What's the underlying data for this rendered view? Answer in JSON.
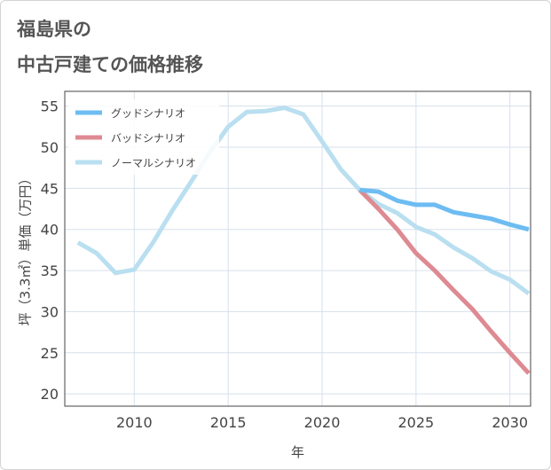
{
  "title_line1": "福島県の",
  "title_line2": "中古戸建ての価格推移",
  "colors": {
    "good": "#6dbcf2",
    "bad": "#de8a92",
    "normal": "#b9dff0",
    "grid": "#d6e0ec",
    "frame": "#444444",
    "text": "#444444"
  },
  "chart_data": {
    "type": "line",
    "title": "福島県の中古戸建ての価格推移",
    "xlabel": "年",
    "ylabel": "坪（3.3㎡）単価（万円）",
    "xlim": [
      2006.3,
      2031.1
    ],
    "ylim": [
      18.5,
      56.8
    ],
    "xticks": [
      2010,
      2015,
      2020,
      2025,
      2030
    ],
    "yticks": [
      20,
      25,
      30,
      35,
      40,
      45,
      50,
      55
    ],
    "legend_position": "top-left",
    "series": [
      {
        "name": "グッドシナリオ",
        "color": "#6dbcf2",
        "x": [
          2022,
          2023,
          2024,
          2025,
          2026,
          2027,
          2028,
          2029,
          2030,
          2031
        ],
        "y": [
          44.8,
          44.6,
          43.5,
          43.0,
          43.0,
          42.1,
          41.7,
          41.3,
          40.6,
          40.0
        ]
      },
      {
        "name": "バッドシナリオ",
        "color": "#de8a92",
        "x": [
          2022,
          2023,
          2024,
          2025,
          2026,
          2027,
          2028,
          2029,
          2030,
          2031
        ],
        "y": [
          44.8,
          42.5,
          40.0,
          37.1,
          35.0,
          32.6,
          30.3,
          27.6,
          25.0,
          22.5
        ]
      },
      {
        "name": "ノーマルシナリオ",
        "color": "#b9dff0",
        "x": [
          2007,
          2008,
          2009,
          2010,
          2011,
          2012,
          2013,
          2014,
          2015,
          2016,
          2017,
          2018,
          2019,
          2020,
          2021,
          2022,
          2023,
          2024,
          2025,
          2026,
          2027,
          2028,
          2029,
          2030,
          2031
        ],
        "y": [
          38.4,
          37.1,
          34.7,
          35.1,
          38.4,
          42.2,
          45.7,
          49.3,
          52.5,
          54.3,
          54.4,
          54.8,
          54.0,
          50.7,
          47.3,
          44.8,
          43.1,
          42.0,
          40.3,
          39.4,
          37.8,
          36.5,
          34.9,
          33.9,
          32.2
        ]
      }
    ]
  }
}
